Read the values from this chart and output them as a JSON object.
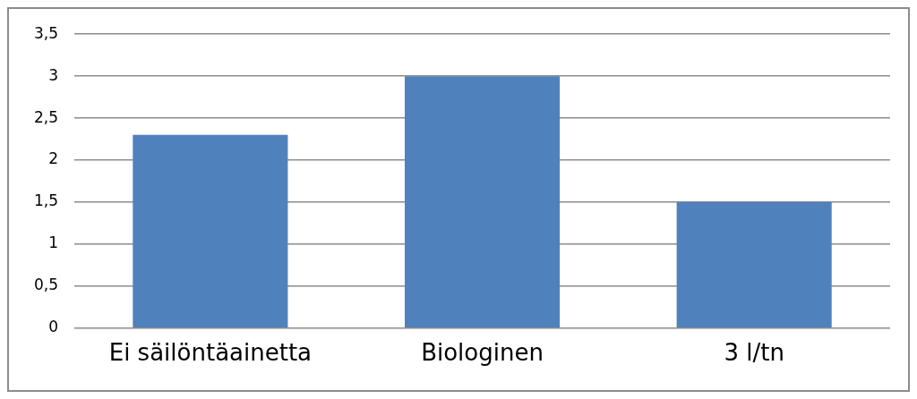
{
  "chart_data": {
    "type": "bar",
    "categories": [
      "Ei säilöntäainetta",
      "Biologinen",
      "3 l/tn"
    ],
    "values": [
      2.3,
      3,
      1.5
    ],
    "color": "#4f81bd",
    "ylim": [
      0,
      3.5
    ],
    "yticks": [
      {
        "value": 0,
        "label": "0"
      },
      {
        "value": 0.5,
        "label": "0,5"
      },
      {
        "value": 1,
        "label": "1"
      },
      {
        "value": 1.5,
        "label": "1,5"
      },
      {
        "value": 2,
        "label": "2"
      },
      {
        "value": 2.5,
        "label": "2,5"
      },
      {
        "value": 3,
        "label": "3"
      },
      {
        "value": 3.5,
        "label": "3,5"
      }
    ],
    "grid": "y",
    "legend": false
  }
}
